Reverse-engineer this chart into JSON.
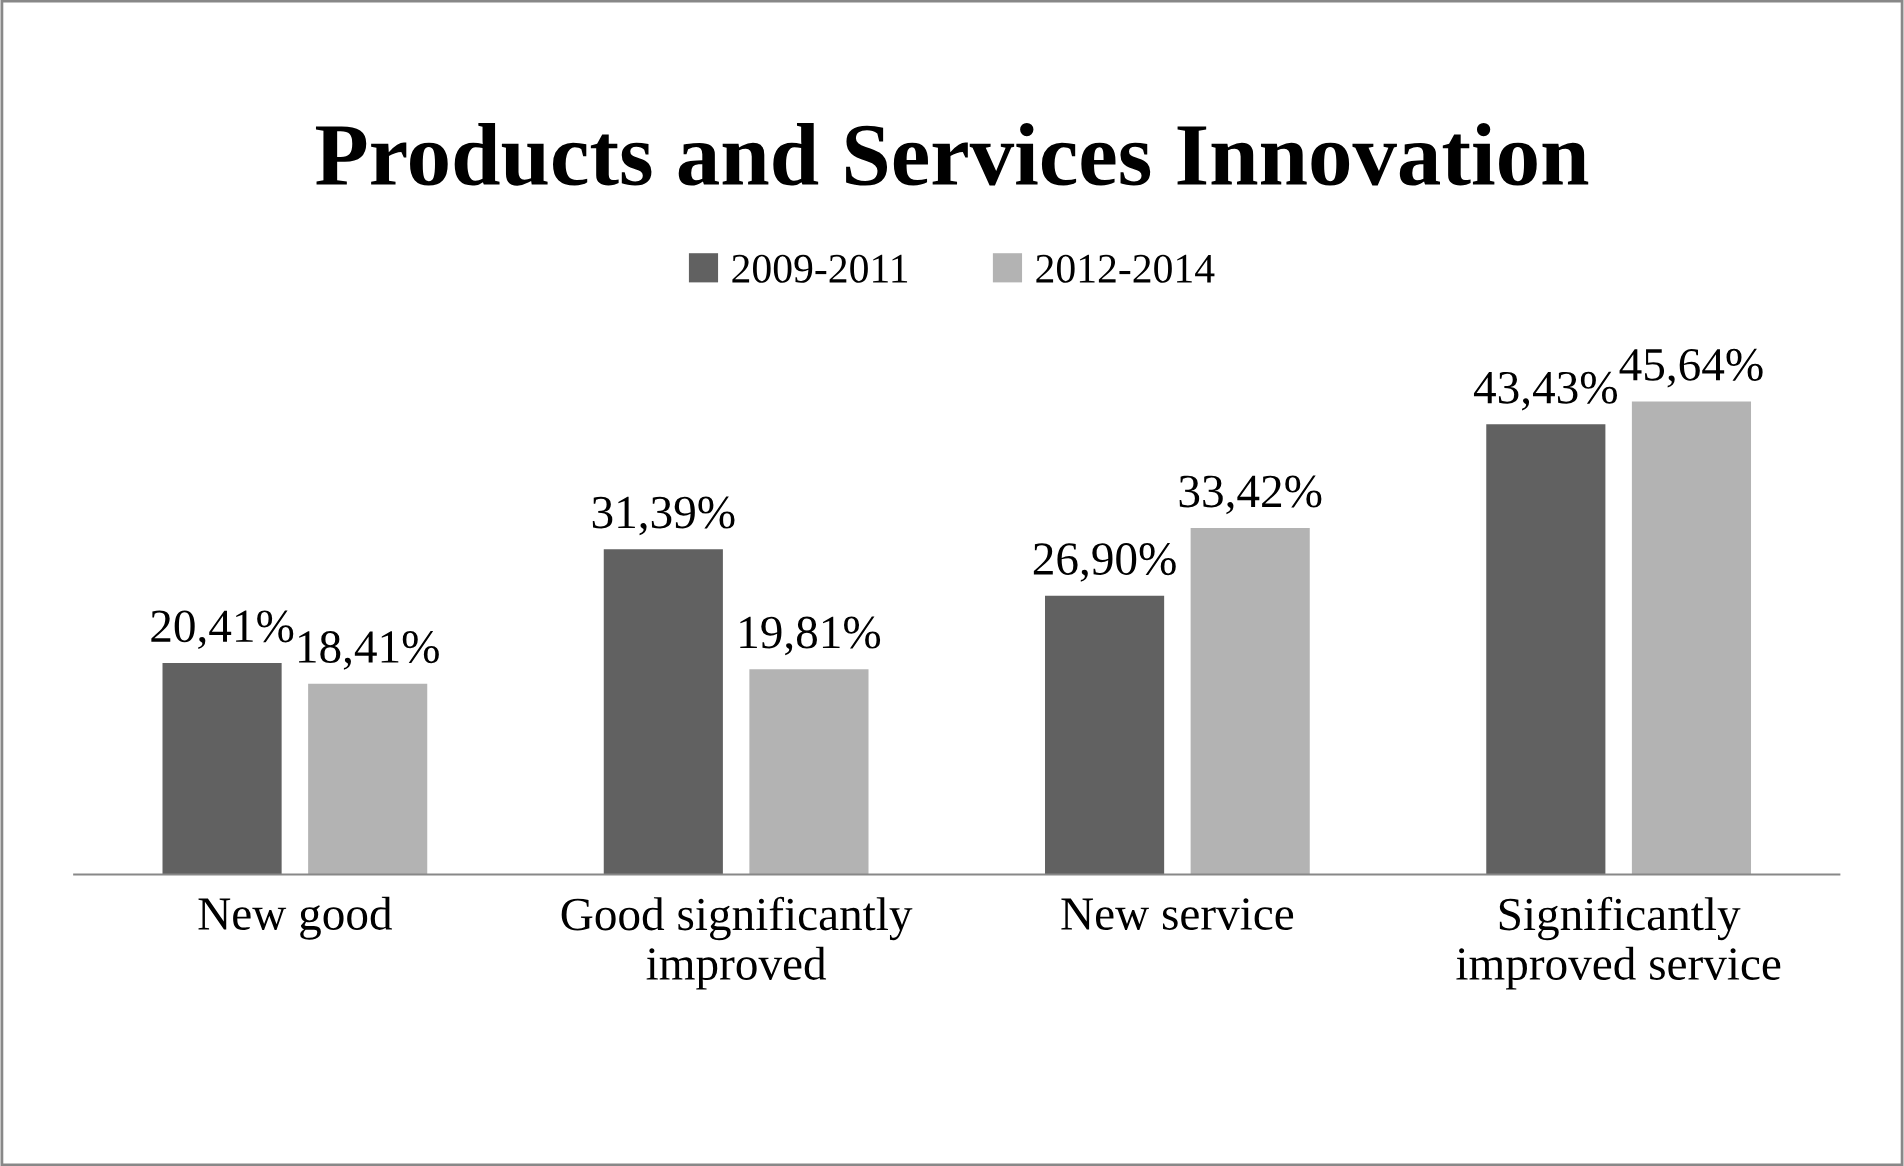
{
  "chart_data": {
    "type": "bar",
    "title": "Products and Services Innovation",
    "categories": [
      "New good",
      "Good significantly\nimproved",
      "New service",
      "Significantly\nimproved service"
    ],
    "series": [
      {
        "name": "2009-2011",
        "color": "#616161",
        "values": [
          20.41,
          31.39,
          26.9,
          43.43
        ],
        "value_labels": [
          "20,41%",
          "31,39%",
          "26,90%",
          "43,43%"
        ]
      },
      {
        "name": "2012-2014",
        "color": "#b3b3b3",
        "values": [
          18.41,
          19.81,
          33.42,
          45.64
        ],
        "value_labels": [
          "18,41%",
          "19,81%",
          "33,42%",
          "45,64%"
        ]
      }
    ],
    "tick_labels": "x",
    "legend": "top",
    "grid": false
  }
}
